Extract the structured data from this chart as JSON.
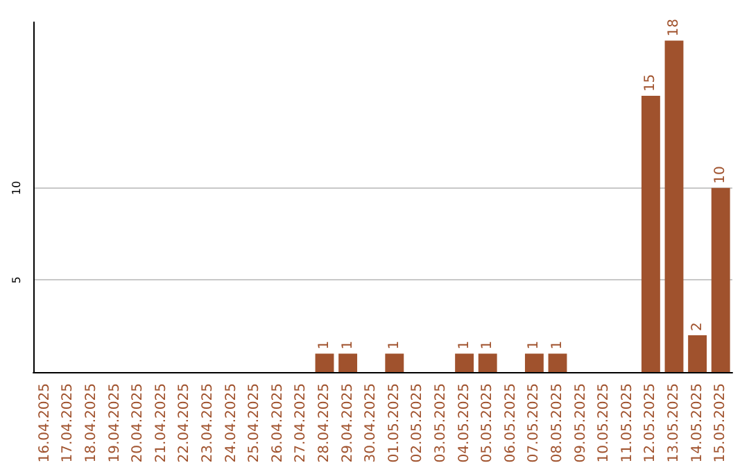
{
  "chart_data": {
    "type": "bar",
    "categories": [
      "16.04.2025",
      "17.04.2025",
      "18.04.2025",
      "19.04.2025",
      "20.04.2025",
      "21.04.2025",
      "22.04.2025",
      "23.04.2025",
      "24.04.2025",
      "25.04.2025",
      "26.04.2025",
      "27.04.2025",
      "28.04.2025",
      "29.04.2025",
      "30.04.2025",
      "01.05.2025",
      "02.05.2025",
      "03.05.2025",
      "04.05.2025",
      "05.05.2025",
      "06.05.2025",
      "07.05.2025",
      "08.05.2025",
      "09.05.2025",
      "10.05.2025",
      "11.05.2025",
      "12.05.2025",
      "13.05.2025",
      "14.05.2025",
      "15.05.2025"
    ],
    "values": [
      0,
      0,
      0,
      0,
      0,
      0,
      0,
      0,
      0,
      0,
      0,
      0,
      1,
      1,
      0,
      1,
      0,
      0,
      1,
      1,
      0,
      1,
      1,
      0,
      0,
      0,
      15,
      18,
      2,
      10
    ],
    "value_labels": [
      null,
      null,
      null,
      null,
      null,
      null,
      null,
      null,
      null,
      null,
      null,
      null,
      "1",
      "1",
      null,
      "1",
      null,
      null,
      "1",
      "1",
      null,
      "1",
      "1",
      null,
      null,
      null,
      "15",
      "18",
      "2",
      "10"
    ],
    "color": "#a0522d",
    "ylim": [
      0,
      19
    ],
    "yticks": [
      5,
      10
    ],
    "grid": "y"
  }
}
